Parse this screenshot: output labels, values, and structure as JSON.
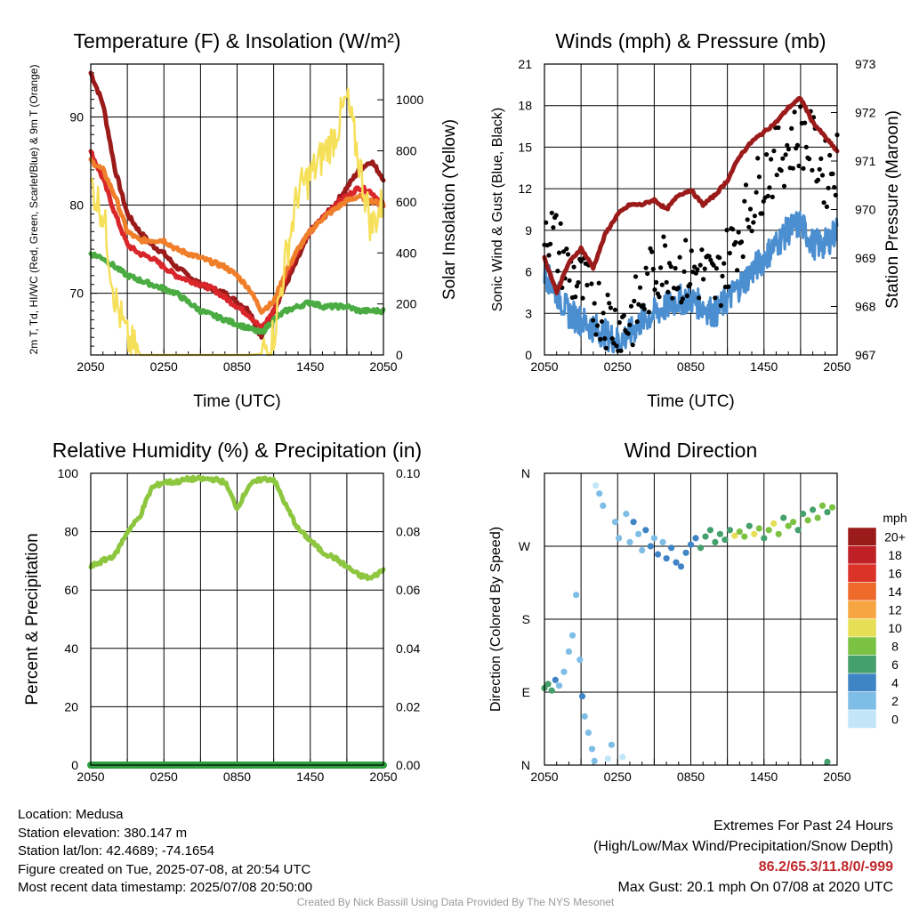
{
  "chart_data": [
    {
      "type": "line",
      "title": "Temperature (F) & Insolation (W/m²)",
      "xlabel": "Time (UTC)",
      "ylabel": "2m T, Td, HI/WC (Red, Green, Scarlet/Blue) & 9m T (Orange)",
      "ylabel_right": "Solar Insolation (Yellow)",
      "ylim": [
        63,
        96
      ],
      "ylim_right": [
        0,
        1140
      ],
      "yticks": [
        70,
        80,
        90
      ],
      "yticks_right": [
        0,
        200,
        400,
        600,
        800,
        1000
      ],
      "x_ticks": [
        "2050",
        "0250",
        "0850",
        "1450",
        "2050"
      ],
      "grid": true,
      "x_hours": [
        0,
        1,
        2,
        3,
        4,
        5,
        6,
        7,
        8,
        9,
        10,
        11,
        12,
        13,
        14,
        15,
        16,
        17,
        18,
        19,
        20,
        21,
        22,
        23,
        24
      ],
      "series": [
        {
          "color": "#9b1b1b",
          "values": [
            95,
            91.5,
            84,
            79,
            77,
            75.5,
            74.5,
            73,
            72,
            71,
            70.5,
            70,
            69,
            68,
            65,
            68,
            71,
            74,
            77,
            78.5,
            80,
            82,
            84,
            85,
            83
          ]
        },
        {
          "color": "#d9262b",
          "values": [
            86,
            83,
            79,
            75.5,
            74.5,
            74,
            73,
            72,
            71.5,
            71,
            70.5,
            69.5,
            68.5,
            67.5,
            66,
            68,
            72,
            75,
            77,
            78.5,
            80,
            81,
            82,
            81.5,
            80
          ]
        },
        {
          "color": "#f07f2b",
          "values": [
            85,
            84,
            81,
            77,
            76,
            76,
            76,
            75,
            74.5,
            74,
            73.5,
            73,
            72,
            70.5,
            68,
            69,
            72.5,
            75,
            77,
            78.5,
            79.5,
            80.5,
            81,
            80.5,
            80
          ]
        },
        {
          "color": "#4aac42",
          "values": [
            74.5,
            74,
            73,
            72,
            71.5,
            71,
            70.5,
            70,
            69,
            68,
            67.5,
            67,
            66.5,
            66,
            65.5,
            67,
            68,
            68.5,
            69,
            68.5,
            68.5,
            68.5,
            68,
            68,
            68
          ]
        },
        {
          "color": "#f6e05a",
          "axis": "right",
          "values": [
            670,
            560,
            220,
            60,
            0,
            0,
            0,
            0,
            0,
            0,
            0,
            0,
            0,
            0,
            5,
            80,
            380,
            640,
            700,
            780,
            860,
            1000,
            760,
            500,
            600
          ]
        }
      ]
    },
    {
      "type": "line",
      "title": "Winds (mph) & Pressure (mb)",
      "xlabel": "Time (UTC)",
      "ylabel": "Sonic Wind & Gust (Blue, Black)",
      "ylabel_right": "Station Pressure (Maroon)",
      "ylim": [
        0,
        21
      ],
      "ylim_right": [
        967,
        973
      ],
      "yticks": [
        0,
        3,
        6,
        9,
        12,
        15,
        18,
        21
      ],
      "yticks_right": [
        967,
        968,
        969,
        970,
        971,
        972,
        973
      ],
      "x_ticks": [
        "2050",
        "0250",
        "0850",
        "1450",
        "2050"
      ],
      "grid": true,
      "x_hours": [
        0,
        1,
        2,
        3,
        4,
        5,
        6,
        7,
        8,
        9,
        10,
        11,
        12,
        13,
        14,
        15,
        16,
        17,
        18,
        19,
        20,
        21,
        22,
        23,
        24
      ],
      "series": [
        {
          "color": "#4b8fd1",
          "values": [
            6,
            4.5,
            3,
            2.5,
            2,
            1.5,
            1,
            1.5,
            2.5,
            3,
            3.5,
            4,
            4,
            3.5,
            3,
            4,
            5,
            6,
            7,
            8,
            9,
            9.5,
            8,
            8,
            9
          ]
        },
        {
          "color": "#000000",
          "points": true,
          "values": [
            10,
            8,
            6,
            5,
            4,
            3,
            2,
            2.5,
            4,
            6,
            7,
            6,
            6,
            6,
            5,
            7,
            9,
            11,
            13,
            14,
            15,
            16,
            15,
            13,
            14
          ]
        },
        {
          "color": "#9b1b1b",
          "axis": "right",
          "values": [
            969,
            968.3,
            968.9,
            969.2,
            968.8,
            969.5,
            969.9,
            970.1,
            970.1,
            970.2,
            970,
            970.3,
            970.4,
            970.1,
            970.3,
            970.6,
            971.1,
            971.4,
            971.6,
            971.8,
            972.1,
            972.3,
            971.8,
            971.5,
            971.2
          ]
        }
      ]
    },
    {
      "type": "line",
      "title": "Relative Humidity (%) & Precipitation (in)",
      "ylabel": "Percent & Precipitation",
      "ylim": [
        0,
        100
      ],
      "ylim_right": [
        0,
        0.1
      ],
      "yticks": [
        0,
        20,
        40,
        60,
        80,
        100
      ],
      "yticks_right": [
        "0.00",
        "0.02",
        "0.04",
        "0.06",
        "0.08",
        "0.10"
      ],
      "x_ticks": [
        "2050",
        "0250",
        "0850",
        "1450",
        "2050"
      ],
      "grid": true,
      "x_hours": [
        0,
        1,
        2,
        3,
        4,
        5,
        6,
        7,
        8,
        9,
        10,
        11,
        12,
        13,
        14,
        15,
        16,
        17,
        18,
        19,
        20,
        21,
        22,
        23,
        24
      ],
      "series": [
        {
          "color": "#8dc63f",
          "values": [
            68,
            70,
            72,
            80,
            85,
            95,
            97,
            97,
            98,
            98,
            98,
            97,
            88,
            96,
            98,
            98,
            89,
            81,
            77,
            73,
            71,
            68,
            65,
            64,
            67
          ]
        },
        {
          "color": "#2e9e3e",
          "axis": "right",
          "values": [
            0,
            0,
            0,
            0,
            0,
            0,
            0,
            0,
            0,
            0,
            0,
            0,
            0,
            0,
            0,
            0,
            0,
            0,
            0,
            0,
            0,
            0,
            0,
            0,
            0
          ]
        }
      ]
    },
    {
      "type": "scatter",
      "title": "Wind Direction",
      "ylabel": "Direction (Colored By Speed)",
      "yticks": [
        "N",
        "E",
        "S",
        "W",
        "N"
      ],
      "ylim": [
        0,
        360
      ],
      "x_ticks": [
        "2050",
        "0250",
        "0850",
        "1450",
        "2050"
      ],
      "grid": true,
      "colorbar": {
        "unit": "mph",
        "labels": [
          "0",
          "2",
          "4",
          "6",
          "8",
          "10",
          "12",
          "14",
          "16",
          "18",
          "20+"
        ],
        "colors": [
          "#c2e6f8",
          "#7ebde6",
          "#3f85c6",
          "#44a06c",
          "#7cc242",
          "#e6df56",
          "#f7a540",
          "#ee6a2b",
          "#dc3329",
          "#be2026",
          "#9b1b1b"
        ]
      },
      "points": [
        {
          "x": 0,
          "y": 95,
          "s": 6
        },
        {
          "x": 0.3,
          "y": 100,
          "s": 5
        },
        {
          "x": 0.6,
          "y": 92,
          "s": 6
        },
        {
          "x": 0.9,
          "y": 105,
          "s": 4
        },
        {
          "x": 1.2,
          "y": 98,
          "s": 2
        },
        {
          "x": 1.6,
          "y": 115,
          "s": 1
        },
        {
          "x": 2,
          "y": 140,
          "s": 1
        },
        {
          "x": 2.3,
          "y": 160,
          "s": 2
        },
        {
          "x": 2.6,
          "y": 210,
          "s": 1
        },
        {
          "x": 2.9,
          "y": 130,
          "s": 1
        },
        {
          "x": 3.1,
          "y": 85,
          "s": 3
        },
        {
          "x": 3.3,
          "y": 60,
          "s": 2
        },
        {
          "x": 3.6,
          "y": 40,
          "s": 1
        },
        {
          "x": 3.9,
          "y": 20,
          "s": 1
        },
        {
          "x": 4.1,
          "y": 5,
          "s": 1
        },
        {
          "x": 4.2,
          "y": 345,
          "s": 0
        },
        {
          "x": 4.5,
          "y": 335,
          "s": 1
        },
        {
          "x": 4.8,
          "y": 320,
          "s": 1
        },
        {
          "x": 5.2,
          "y": 8,
          "s": 0
        },
        {
          "x": 5.5,
          "y": 25,
          "s": 1
        },
        {
          "x": 5.8,
          "y": 300,
          "s": 2
        },
        {
          "x": 6.1,
          "y": 280,
          "s": 1
        },
        {
          "x": 6.4,
          "y": 10,
          "s": 0
        },
        {
          "x": 6.7,
          "y": 310,
          "s": 2
        },
        {
          "x": 7.0,
          "y": 275,
          "s": 2
        },
        {
          "x": 7.3,
          "y": 300,
          "s": 3
        },
        {
          "x": 7.7,
          "y": 285,
          "s": 2
        },
        {
          "x": 8.0,
          "y": 265,
          "s": 1
        },
        {
          "x": 8.3,
          "y": 290,
          "s": 3
        },
        {
          "x": 8.7,
          "y": 270,
          "s": 3
        },
        {
          "x": 9.0,
          "y": 280,
          "s": 2
        },
        {
          "x": 9.3,
          "y": 260,
          "s": 3
        },
        {
          "x": 9.7,
          "y": 275,
          "s": 2
        },
        {
          "x": 10.0,
          "y": 255,
          "s": 3
        },
        {
          "x": 10.4,
          "y": 268,
          "s": 3
        },
        {
          "x": 10.8,
          "y": 250,
          "s": 3
        },
        {
          "x": 11.2,
          "y": 245,
          "s": 3
        },
        {
          "x": 11.6,
          "y": 262,
          "s": 4
        },
        {
          "x": 12.0,
          "y": 272,
          "s": 3
        },
        {
          "x": 12.4,
          "y": 280,
          "s": 4
        },
        {
          "x": 12.8,
          "y": 268,
          "s": 5
        },
        {
          "x": 13.2,
          "y": 282,
          "s": 5
        },
        {
          "x": 13.6,
          "y": 290,
          "s": 6
        },
        {
          "x": 14.0,
          "y": 275,
          "s": 5
        },
        {
          "x": 14.4,
          "y": 285,
          "s": 6
        },
        {
          "x": 14.8,
          "y": 278,
          "s": 5
        },
        {
          "x": 15.2,
          "y": 290,
          "s": 6
        },
        {
          "x": 15.6,
          "y": 283,
          "s": 9
        },
        {
          "x": 16.0,
          "y": 288,
          "s": 7
        },
        {
          "x": 16.4,
          "y": 282,
          "s": 8
        },
        {
          "x": 16.8,
          "y": 295,
          "s": 6
        },
        {
          "x": 17.2,
          "y": 285,
          "s": 10
        },
        {
          "x": 17.6,
          "y": 292,
          "s": 7
        },
        {
          "x": 18.0,
          "y": 280,
          "s": 6
        },
        {
          "x": 18.4,
          "y": 290,
          "s": 8
        },
        {
          "x": 18.8,
          "y": 298,
          "s": 9
        },
        {
          "x": 19.2,
          "y": 285,
          "s": 7
        },
        {
          "x": 19.6,
          "y": 305,
          "s": 6
        },
        {
          "x": 20.0,
          "y": 295,
          "s": 8
        },
        {
          "x": 20.4,
          "y": 300,
          "s": 7
        },
        {
          "x": 20.8,
          "y": 290,
          "s": 6
        },
        {
          "x": 21.2,
          "y": 310,
          "s": 6
        },
        {
          "x": 21.6,
          "y": 302,
          "s": 8
        },
        {
          "x": 22.0,
          "y": 315,
          "s": 6
        },
        {
          "x": 22.4,
          "y": 305,
          "s": 7
        },
        {
          "x": 22.8,
          "y": 320,
          "s": 8
        },
        {
          "x": 23.2,
          "y": 312,
          "s": 6
        },
        {
          "x": 23.6,
          "y": 318,
          "s": 7
        },
        {
          "x": 23.2,
          "y": 4,
          "s": 6
        }
      ]
    }
  ],
  "footer": {
    "location": "Location: Medusa",
    "elevation": "Station elevation: 380.147 m",
    "latlon": "Station lat/lon: 42.4689; -74.1654",
    "created": "Figure created on Tue, 2025-07-08, at 20:54 UTC",
    "recent": "Most recent data timestamp: 2025/07/08 20:50:00"
  },
  "extremes": {
    "title": "Extremes For Past 24 Hours",
    "subtitle": "(High/Low/Max Wind/Precipitation/Snow Depth)",
    "values": "86.2/65.3/11.8/0/-999",
    "gust": "Max Gust: 20.1 mph On 07/08 at 2020 UTC"
  },
  "credit": "Created By Nick Bassill Using Data Provided By The NYS Mesonet"
}
